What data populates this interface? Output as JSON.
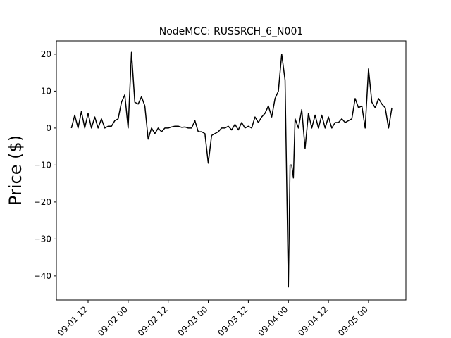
{
  "chart_data": {
    "type": "line",
    "title": "NodeMCC: RUSSRCH_6_N001",
    "y_label": "Price ($)",
    "x": [
      31,
      32,
      33,
      34,
      35,
      36,
      37,
      38,
      39,
      40,
      41,
      42,
      43,
      44,
      45,
      46,
      47,
      48,
      49,
      50,
      51,
      52,
      53,
      54,
      55,
      56,
      57,
      58,
      59,
      60,
      61,
      62,
      63,
      64,
      65,
      66,
      67,
      68,
      69,
      70,
      71,
      72,
      73,
      74,
      75,
      76,
      77,
      78,
      79,
      80,
      81,
      82,
      83,
      84,
      85,
      86,
      87,
      88,
      89,
      90,
      91,
      92,
      93,
      94,
      95,
      96,
      96.5,
      97,
      97.5,
      98,
      99,
      100,
      101,
      102,
      103,
      104,
      105,
      106,
      107,
      108,
      109,
      110,
      111,
      112,
      113,
      114,
      115,
      116,
      117,
      118,
      119,
      120,
      121,
      122,
      123,
      124,
      125,
      126,
      127
    ],
    "values": [
      0,
      3.5,
      0,
      4.5,
      0,
      4,
      0,
      3,
      0,
      2.5,
      0,
      0.5,
      0.5,
      2,
      2.5,
      7,
      9,
      0,
      20.5,
      7,
      6.5,
      8.5,
      6,
      -3,
      0,
      -1.5,
      0,
      -1,
      0,
      0,
      0.3,
      0.5,
      0.5,
      0.2,
      0.3,
      0,
      0,
      2,
      -1,
      -1,
      -1.5,
      -9.5,
      -2,
      -1.5,
      -1,
      0,
      0,
      0.5,
      -0.5,
      1,
      -0.5,
      1.5,
      0,
      0.5,
      0,
      3,
      1.5,
      3,
      4,
      6,
      3,
      8,
      10,
      20,
      13,
      -43,
      -10,
      -10,
      -13.5,
      2.5,
      0,
      5,
      -5.5,
      4,
      0,
      3.5,
      0,
      3.5,
      0,
      3,
      0,
      1.5,
      1.5,
      2.5,
      1.5,
      2,
      2.5,
      8,
      5.5,
      6,
      0,
      16,
      7,
      5.5,
      8,
      6.5,
      5.5,
      0,
      5.5
    ],
    "color": "#000000",
    "xlim": [
      26.5,
      131.2
    ],
    "ylim": [
      -46.5,
      23.6
    ],
    "xticks": [
      {
        "value": 36,
        "label": "09-01 12"
      },
      {
        "value": 48,
        "label": "09-02 00"
      },
      {
        "value": 60,
        "label": "09-02 12"
      },
      {
        "value": 72,
        "label": "09-03 00"
      },
      {
        "value": 84,
        "label": "09-03 12"
      },
      {
        "value": 96,
        "label": "09-04 00"
      },
      {
        "value": 108,
        "label": "09-04 12"
      },
      {
        "value": 120,
        "label": "09-05 00"
      }
    ],
    "yticks": [
      {
        "value": -40,
        "label": "−40"
      },
      {
        "value": -30,
        "label": "−30"
      },
      {
        "value": -20,
        "label": "−20"
      },
      {
        "value": -10,
        "label": "−10"
      },
      0,
      10,
      20
    ]
  }
}
